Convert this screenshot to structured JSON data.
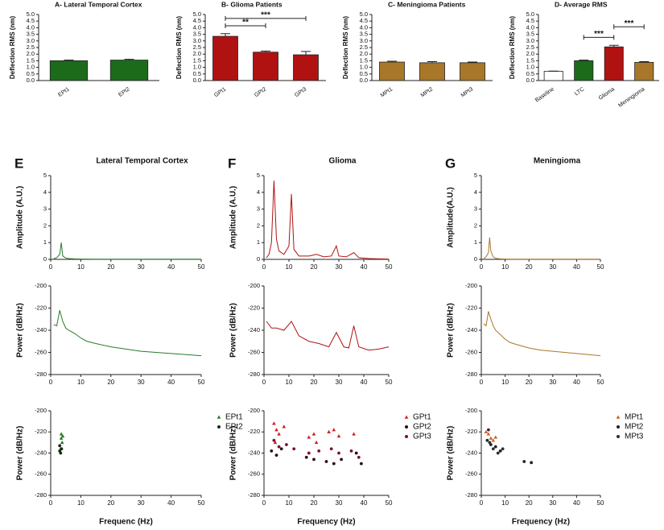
{
  "chart_data": [
    {
      "type": "bar",
      "title": "A- Lateral Temporal Cortex",
      "ylabel": "Deflection RMS (nm)",
      "categories": [
        "EPt1",
        "EPt2"
      ],
      "values": [
        1.5,
        1.55
      ],
      "errors": [
        0.05,
        0.06
      ],
      "colors": [
        "#1b6b1b",
        "#1b6b1b"
      ],
      "ylim": [
        0,
        5
      ],
      "yticks": [
        {
          "value": 0,
          "label": "0.0"
        },
        {
          "value": 0.5,
          "label": "0.5"
        },
        {
          "value": 1,
          "label": "1.0"
        },
        {
          "value": 1.5,
          "label": "1.5"
        },
        {
          "value": 2,
          "label": "2.0"
        },
        {
          "value": 2.5,
          "label": "2.5"
        },
        {
          "value": 3,
          "label": "3.0"
        },
        {
          "value": 3.5,
          "label": "3.5"
        },
        {
          "value": 4,
          "label": "4.0"
        },
        {
          "value": 4.5,
          "label": "4.5"
        },
        {
          "value": 5,
          "label": "5.0"
        }
      ],
      "significance": []
    },
    {
      "type": "bar",
      "title": "B- Glioma Patients",
      "ylabel": "Deflection RMS (nm)",
      "categories": [
        "GPt1",
        "GPt2",
        "GPt3"
      ],
      "values": [
        3.35,
        2.15,
        1.95
      ],
      "errors": [
        0.2,
        0.08,
        0.25
      ],
      "colors": [
        "#b01212",
        "#b01212",
        "#b01212"
      ],
      "ylim": [
        0,
        5
      ],
      "yticks": [
        {
          "value": 0,
          "label": "0.0"
        },
        {
          "value": 0.5,
          "label": "0.5"
        },
        {
          "value": 1,
          "label": "1.0"
        },
        {
          "value": 1.5,
          "label": "1.5"
        },
        {
          "value": 2,
          "label": "2.0"
        },
        {
          "value": 2.5,
          "label": "2.5"
        },
        {
          "value": 3,
          "label": "3.0"
        },
        {
          "value": 3.5,
          "label": "3.5"
        },
        {
          "value": 4,
          "label": "4.0"
        },
        {
          "value": 4.5,
          "label": "4.5"
        },
        {
          "value": 5,
          "label": "5.0"
        }
      ],
      "significance": [
        {
          "label": "**",
          "between": [
            "GPt1",
            "GPt2"
          ]
        },
        {
          "label": "***",
          "between": [
            "GPt1",
            "GPt3"
          ]
        }
      ]
    },
    {
      "type": "bar",
      "title": "C- Meningioma Patients",
      "ylabel": "Deflection RMS (nm)",
      "categories": [
        "MPt1",
        "MPt2",
        "MPt3"
      ],
      "values": [
        1.4,
        1.35,
        1.35
      ],
      "errors": [
        0.06,
        0.08,
        0.05
      ],
      "colors": [
        "#a8772a",
        "#a8772a",
        "#a8772a"
      ],
      "ylim": [
        0,
        5
      ],
      "yticks": [
        {
          "value": 0,
          "label": "0.0"
        },
        {
          "value": 0.5,
          "label": "0.5"
        },
        {
          "value": 1,
          "label": "1.0"
        },
        {
          "value": 1.5,
          "label": "1.5"
        },
        {
          "value": 2,
          "label": "2.0"
        },
        {
          "value": 2.5,
          "label": "2.5"
        },
        {
          "value": 3,
          "label": "3.0"
        },
        {
          "value": 3.5,
          "label": "3.5"
        },
        {
          "value": 4,
          "label": "4.0"
        },
        {
          "value": 4.5,
          "label": "4.5"
        },
        {
          "value": 5,
          "label": "5.0"
        }
      ],
      "significance": []
    },
    {
      "type": "bar",
      "title": "D- Average RMS",
      "ylabel": "Deflection RMS (nm)",
      "categories": [
        "Baseline",
        "LTC",
        "Glioma",
        "Meningioma"
      ],
      "values": [
        0.7,
        1.5,
        2.55,
        1.38
      ],
      "errors": [
        0.02,
        0.05,
        0.12,
        0.05
      ],
      "colors": [
        "#ffffff",
        "#1b6b1b",
        "#b01212",
        "#a8772a"
      ],
      "ylim": [
        0,
        5
      ],
      "yticks": [
        {
          "value": 0,
          "label": "0.0"
        },
        {
          "value": 0.5,
          "label": "0.5"
        },
        {
          "value": 1,
          "label": "1.0"
        },
        {
          "value": 1.5,
          "label": "1.5"
        },
        {
          "value": 2,
          "label": "2.0"
        },
        {
          "value": 2.5,
          "label": "2.5"
        },
        {
          "value": 3,
          "label": "3.0"
        },
        {
          "value": 3.5,
          "label": "3.5"
        },
        {
          "value": 4,
          "label": "4.0"
        },
        {
          "value": 4.5,
          "label": "4.5"
        },
        {
          "value": 5,
          "label": "5.0"
        }
      ],
      "significance": [
        {
          "label": "***",
          "between": [
            "LTC",
            "Glioma"
          ]
        },
        {
          "label": "***",
          "between": [
            "Glioma",
            "Meningioma"
          ]
        }
      ]
    },
    {
      "type": "line",
      "panel": "E",
      "title": "Lateral Temporal Cortex",
      "ylabel": "Amplitude (A.U.)",
      "color": "#2a7a2a",
      "x": [
        1,
        2,
        3,
        3.5,
        4,
        5,
        6,
        8,
        10,
        15,
        20,
        30,
        40,
        50
      ],
      "values": [
        0.05,
        0.1,
        0.3,
        1.0,
        0.2,
        0.08,
        0.05,
        0.03,
        0.02,
        0.01,
        0.01,
        0.01,
        0.01,
        0.01
      ],
      "xlim": [
        0,
        50
      ],
      "xticks": [
        0,
        10,
        20,
        30,
        40,
        50
      ],
      "ylim": [
        0,
        5
      ],
      "yticks": [
        0,
        1,
        2,
        3,
        4,
        5
      ]
    },
    {
      "type": "line",
      "panel": "F",
      "title": "Glioma",
      "ylabel": "Amplitude (A.U.)",
      "color": "#b01212",
      "x": [
        1,
        2,
        3,
        4,
        5,
        6,
        8,
        10,
        11,
        12,
        14,
        18,
        21,
        24,
        27,
        29,
        30,
        33,
        36,
        38,
        42,
        46,
        50
      ],
      "values": [
        0.1,
        0.3,
        1,
        4.7,
        1.2,
        0.5,
        0.3,
        0.8,
        3.9,
        0.6,
        0.2,
        0.2,
        0.3,
        0.15,
        0.2,
        0.8,
        0.2,
        0.15,
        0.4,
        0.1,
        0.05,
        0.03,
        0.02
      ],
      "xlim": [
        0,
        50
      ],
      "xticks": [
        0,
        10,
        20,
        30,
        40,
        50
      ],
      "ylim": [
        0,
        5
      ],
      "yticks": [
        0,
        1,
        2,
        3,
        4,
        5
      ]
    },
    {
      "type": "line",
      "panel": "G",
      "title": "Meningioma",
      "ylabel": "Amplitude(A.U.)",
      "color": "#a8772a",
      "x": [
        1,
        2,
        3,
        3.5,
        4,
        5,
        6,
        8,
        10,
        15,
        20,
        30,
        40,
        50
      ],
      "values": [
        0.05,
        0.15,
        0.4,
        1.3,
        0.5,
        0.15,
        0.06,
        0.03,
        0.02,
        0.01,
        0.01,
        0.01,
        0.01,
        0.01
      ],
      "xlim": [
        0,
        50
      ],
      "xticks": [
        0,
        10,
        20,
        30,
        40,
        50
      ],
      "ylim": [
        0,
        5
      ],
      "yticks": [
        0,
        1,
        2,
        3,
        4,
        5
      ]
    },
    {
      "type": "line",
      "ylabel": "Power (dB/Hz)",
      "color": "#2a7a2a",
      "x": [
        1,
        2,
        3,
        4,
        5,
        6,
        8,
        10,
        12,
        15,
        20,
        25,
        30,
        35,
        40,
        45,
        50
      ],
      "values": [
        -235,
        -236,
        -222,
        -232,
        -238,
        -240,
        -243,
        -247,
        -250,
        -252,
        -255,
        -257,
        -259,
        -260,
        -261,
        -262,
        -263
      ],
      "xlim": [
        0,
        50
      ],
      "xticks": [
        0,
        10,
        20,
        30,
        40,
        50
      ],
      "ylim": [
        -280,
        -200
      ],
      "yticks": [
        -280,
        -260,
        -240,
        -220,
        -200
      ]
    },
    {
      "type": "line",
      "ylabel": "Power (dB/Hz)",
      "color": "#b01212",
      "x": [
        1,
        3,
        5,
        8,
        11,
        14,
        18,
        22,
        26,
        29,
        32,
        34,
        36,
        38,
        42,
        46,
        50
      ],
      "values": [
        -232,
        -238,
        -238,
        -240,
        -232,
        -245,
        -250,
        -252,
        -255,
        -242,
        -255,
        -256,
        -236,
        -255,
        -258,
        -257,
        -255
      ],
      "xlim": [
        0,
        50
      ],
      "xticks": [
        0,
        10,
        20,
        30,
        40,
        50
      ],
      "ylim": [
        -280,
        -200
      ],
      "yticks": [
        -280,
        -260,
        -240,
        -220,
        -200
      ]
    },
    {
      "type": "line",
      "ylabel": "Power (dB/Hz)",
      "color": "#a8772a",
      "x": [
        1,
        2,
        3,
        4,
        5,
        6,
        8,
        10,
        12,
        15,
        20,
        25,
        30,
        35,
        40,
        45,
        50
      ],
      "values": [
        -234,
        -236,
        -223,
        -230,
        -236,
        -240,
        -244,
        -248,
        -251,
        -253,
        -256,
        -258,
        -259,
        -260,
        -261,
        -262,
        -263
      ],
      "xlim": [
        0,
        50
      ],
      "xticks": [
        0,
        10,
        20,
        30,
        40,
        50
      ],
      "ylim": [
        -280,
        -200
      ],
      "yticks": [
        -280,
        -260,
        -240,
        -220,
        -200
      ]
    },
    {
      "type": "scatter",
      "ylabel": "Power (dB/Hz)",
      "xlabel": "Frequenc (Hz)",
      "xlim": [
        0,
        50
      ],
      "xticks": [
        0,
        10,
        20,
        30,
        40,
        50
      ],
      "ylim": [
        -280,
        -200
      ],
      "yticks": [
        -280,
        -260,
        -240,
        -220,
        -200
      ],
      "series": [
        {
          "name": "EPt1",
          "color": "#2a7a2a",
          "marker": "triangle",
          "x": [
            3.5,
            3.5,
            4,
            3.8,
            3.3
          ],
          "values": [
            -222,
            -226,
            -224,
            -230,
            -236
          ]
        },
        {
          "name": "EPt2",
          "color": "#1a2a1a",
          "marker": "circle",
          "x": [
            3,
            3.3,
            3.6,
            3
          ],
          "values": [
            -238,
            -240,
            -236,
            -233
          ]
        }
      ]
    },
    {
      "type": "scatter",
      "ylabel": "Power (dB/Hz)",
      "xlabel": "Frequency (Hz)",
      "xlim": [
        0,
        50
      ],
      "xticks": [
        0,
        10,
        20,
        30,
        40,
        50
      ],
      "ylim": [
        -280,
        -200
      ],
      "yticks": [
        -280,
        -260,
        -240,
        -220,
        -200
      ],
      "series": [
        {
          "name": "GPt1",
          "color": "#cc2222",
          "marker": "triangle",
          "x": [
            4,
            5,
            6,
            8,
            18,
            20,
            26,
            28,
            30,
            36,
            4.5,
            21
          ],
          "values": [
            -212,
            -218,
            -222,
            -215,
            -225,
            -222,
            -220,
            -218,
            -224,
            -222,
            -230,
            -230
          ]
        },
        {
          "name": "GPt2",
          "color": "#2a0a1a",
          "marker": "circle",
          "x": [
            3,
            5,
            7,
            17,
            20,
            25,
            28,
            31,
            37,
            39
          ],
          "values": [
            -238,
            -242,
            -236,
            -244,
            -246,
            -248,
            -250,
            -246,
            -240,
            -250
          ]
        },
        {
          "name": "GPt3",
          "color": "#7a1030",
          "marker": "circle",
          "x": [
            4,
            6,
            9,
            18,
            22,
            27,
            30,
            35,
            38,
            12
          ],
          "values": [
            -228,
            -234,
            -232,
            -240,
            -238,
            -236,
            -240,
            -238,
            -244,
            -236
          ]
        }
      ]
    },
    {
      "type": "scatter",
      "ylabel": "Power (dB/Hz)",
      "xlabel": "Frequency (Hz)",
      "xlim": [
        0,
        50
      ],
      "xticks": [
        0,
        10,
        20,
        30,
        40,
        50
      ],
      "ylim": [
        -280,
        -200
      ],
      "yticks": [
        -280,
        -260,
        -240,
        -220,
        -200
      ],
      "series": [
        {
          "name": "MPt1",
          "color": "#d06020",
          "marker": "triangle",
          "x": [
            2,
            3,
            4,
            5,
            6
          ],
          "values": [
            -220,
            -222,
            -226,
            -228,
            -225
          ]
        },
        {
          "name": "MPt2",
          "color": "#222222",
          "marker": "circle",
          "x": [
            2.5,
            4,
            6,
            8,
            18,
            21
          ],
          "values": [
            -228,
            -232,
            -234,
            -238,
            -248,
            -249
          ]
        },
        {
          "name": "MPt3",
          "color": "#3a2a2a",
          "marker": "circle",
          "x": [
            3,
            3.5,
            5,
            7,
            9
          ],
          "values": [
            -218,
            -230,
            -236,
            -240,
            -236
          ]
        }
      ]
    }
  ]
}
